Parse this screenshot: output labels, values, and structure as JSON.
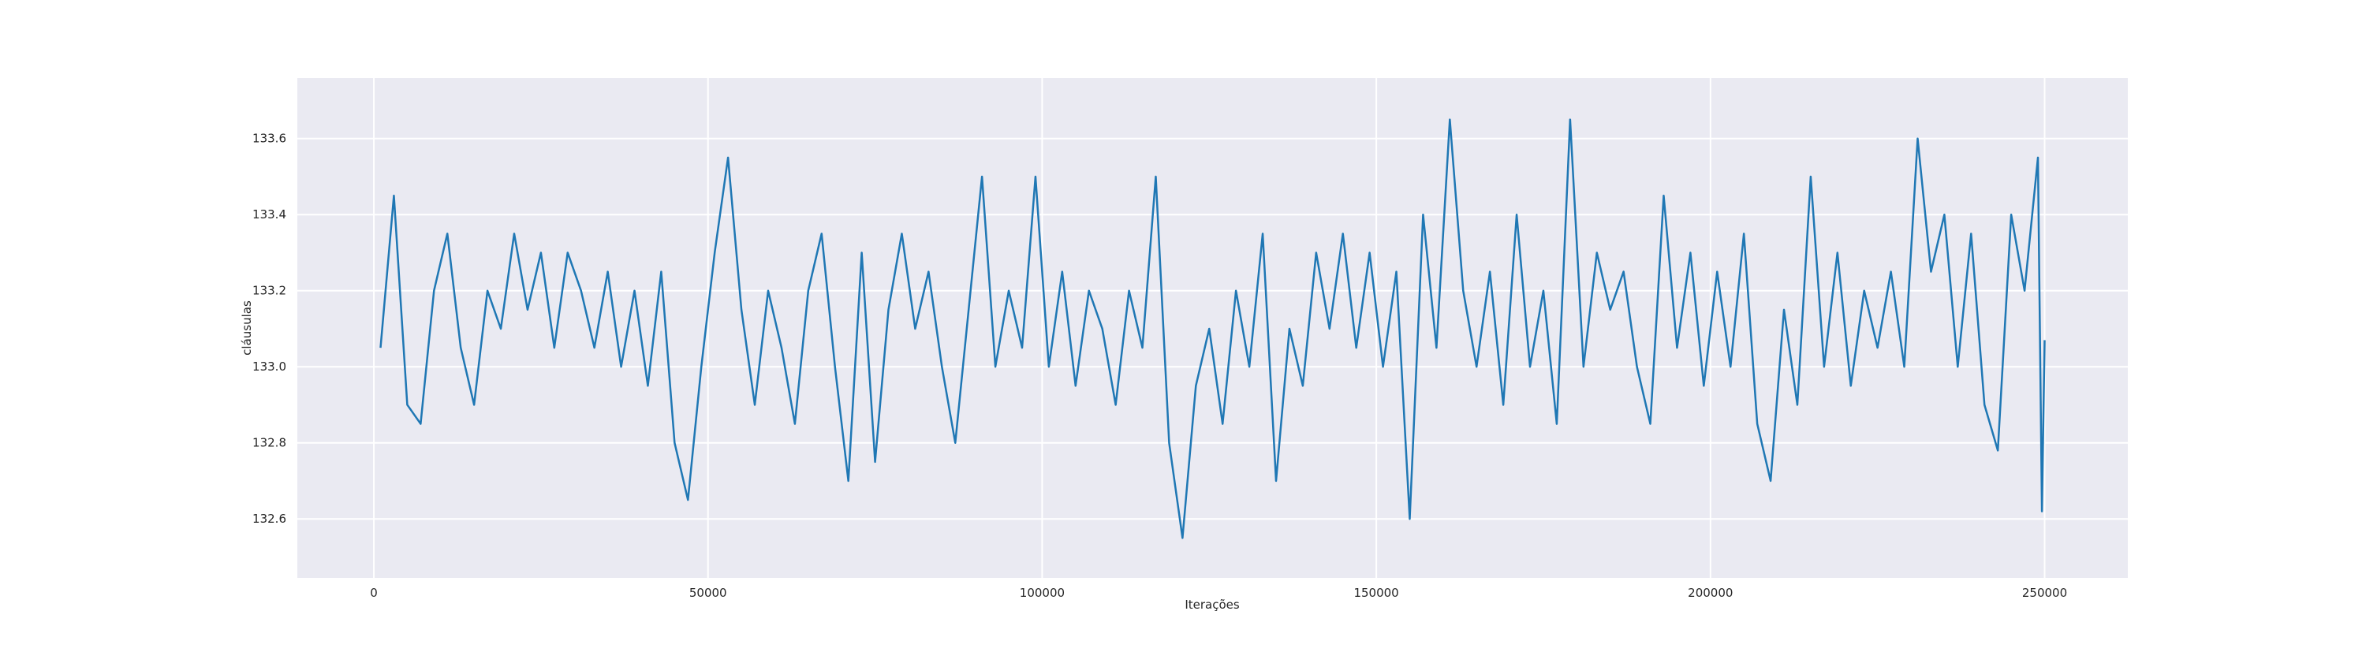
{
  "chart_data": {
    "type": "line",
    "xlabel": "Iterações",
    "ylabel": "cláusulas",
    "xlim": [
      -11450,
      262450
    ],
    "ylim": [
      132.445,
      133.759
    ],
    "xticks": [
      0,
      50000,
      100000,
      150000,
      200000,
      250000
    ],
    "yticks": [
      132.6,
      132.8,
      {
        "value": 133.0,
        "label": "133.0"
      },
      133.2,
      133.4,
      133.6
    ],
    "grid": true,
    "background": "#eaeaf2",
    "grid_color": "#ffffff",
    "x": [
      1000,
      3000,
      5000,
      7000,
      9000,
      11000,
      13000,
      15000,
      17000,
      19000,
      21000,
      23000,
      25000,
      27000,
      29000,
      31000,
      33000,
      35000,
      37000,
      39000,
      41000,
      43000,
      45000,
      47000,
      49000,
      51000,
      53000,
      55000,
      57000,
      59000,
      61000,
      63000,
      65000,
      67000,
      69000,
      71000,
      73000,
      75000,
      77000,
      79000,
      81000,
      83000,
      85000,
      87000,
      89000,
      91000,
      93000,
      95000,
      97000,
      99000,
      101000,
      103000,
      105000,
      107000,
      109000,
      111000,
      113000,
      115000,
      117000,
      119000,
      121000,
      123000,
      125000,
      127000,
      129000,
      131000,
      133000,
      135000,
      137000,
      139000,
      141000,
      143000,
      145000,
      147000,
      149000,
      151000,
      153000,
      155000,
      157000,
      159000,
      161000,
      163000,
      165000,
      167000,
      169000,
      171000,
      173000,
      175000,
      177000,
      179000,
      181000,
      183000,
      185000,
      187000,
      189000,
      191000,
      193000,
      195000,
      197000,
      199000,
      201000,
      203000,
      205000,
      207000,
      209000,
      211000,
      213000,
      215000,
      217000,
      219000,
      221000,
      223000,
      225000,
      227000,
      229000,
      231000,
      233000,
      235000,
      237000,
      239000,
      241000,
      243000,
      245000,
      247000,
      249000,
      249600,
      250000
    ],
    "series": [
      {
        "name": "cláusulas",
        "color": "#1f77b4",
        "values": [
          133.05,
          133.45,
          132.9,
          132.85,
          133.2,
          133.35,
          133.05,
          132.9,
          133.2,
          133.1,
          133.35,
          133.15,
          133.3,
          133.05,
          133.3,
          133.2,
          133.05,
          133.25,
          133.0,
          133.2,
          132.95,
          133.25,
          132.8,
          132.65,
          133.0,
          133.3,
          133.55,
          133.15,
          132.9,
          133.2,
          133.05,
          132.85,
          133.2,
          133.35,
          133.0,
          132.7,
          133.3,
          132.75,
          133.15,
          133.35,
          133.1,
          133.25,
          133.0,
          132.8,
          133.15,
          133.5,
          133.0,
          133.2,
          133.05,
          133.5,
          133.0,
          133.25,
          132.95,
          133.2,
          133.1,
          132.9,
          133.2,
          133.05,
          133.5,
          132.8,
          132.55,
          132.95,
          133.1,
          132.85,
          133.2,
          133.0,
          133.35,
          132.7,
          133.1,
          132.95,
          133.3,
          133.1,
          133.35,
          133.05,
          133.3,
          133.0,
          133.25,
          132.6,
          133.4,
          133.05,
          133.65,
          133.2,
          133.0,
          133.25,
          132.9,
          133.4,
          133.0,
          133.2,
          132.85,
          133.65,
          133.0,
          133.3,
          133.15,
          133.25,
          133.0,
          132.85,
          133.45,
          133.05,
          133.3,
          132.95,
          133.25,
          133.0,
          133.35,
          132.85,
          132.7,
          133.15,
          132.9,
          133.5,
          133.0,
          133.3,
          132.95,
          133.2,
          133.05,
          133.25,
          133.0,
          133.6,
          133.25,
          133.4,
          133.0,
          133.35,
          132.9,
          132.78,
          133.4,
          133.2,
          133.55,
          132.62,
          133.07
        ]
      }
    ]
  }
}
